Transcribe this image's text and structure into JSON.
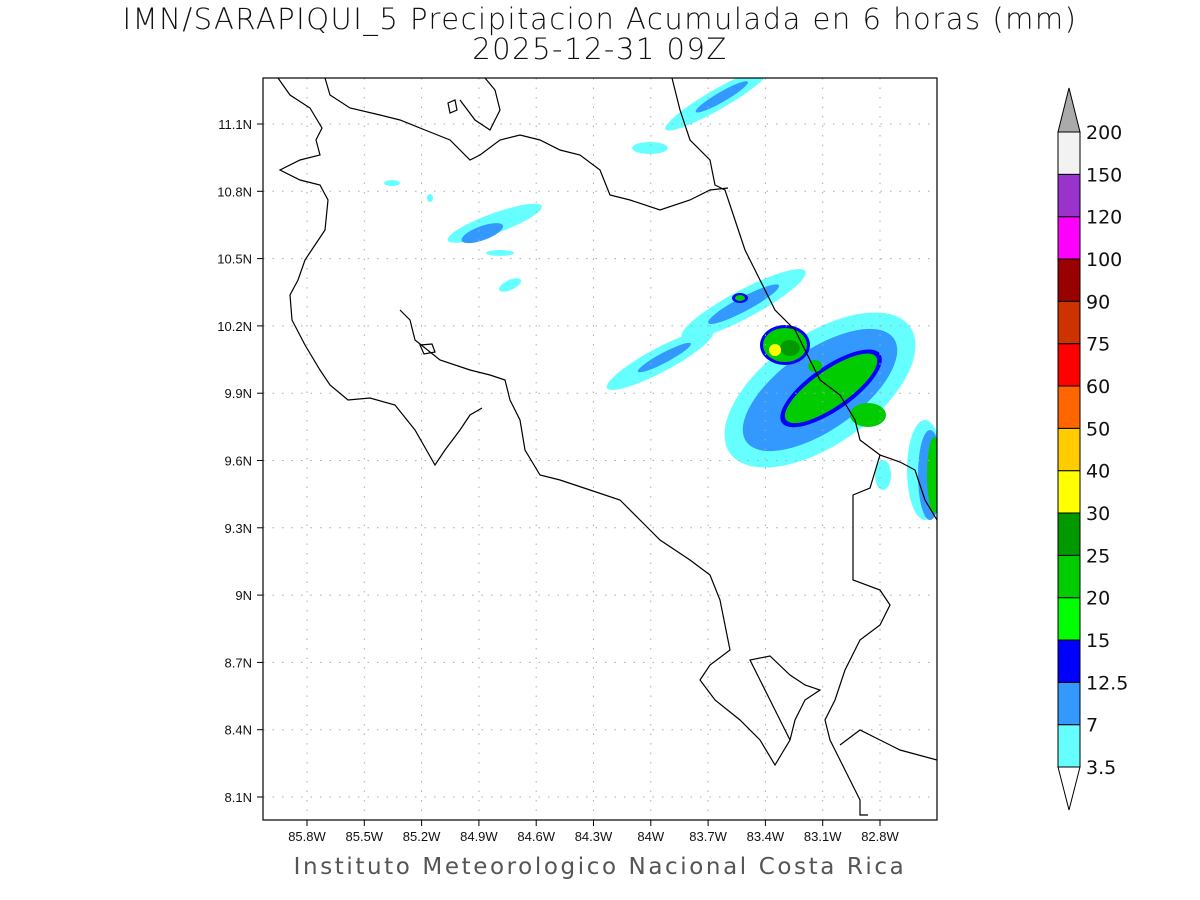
{
  "title": {
    "line1": "IMN/SARAPIQUI_5 Precipitacion Acumulada en 6 horas (mm)",
    "line2": "2025-12-31 09Z"
  },
  "credit": "Instituto Meteorologico Nacional Costa Rica",
  "map": {
    "lon_labels": [
      "85.8W",
      "85.5W",
      "85.2W",
      "84.9W",
      "84.6W",
      "84.3W",
      "84W",
      "83.7W",
      "83.4W",
      "83.1W",
      "82.8W"
    ],
    "lat_labels": [
      "11.1N",
      "10.8N",
      "10.5N",
      "10.2N",
      "9.9N",
      "9.6N",
      "9.3N",
      "9N",
      "8.7N",
      "8.4N",
      "8.1N"
    ]
  },
  "legend": {
    "levels": [
      "3.5",
      "7",
      "12.5",
      "15",
      "20",
      "25",
      "30",
      "40",
      "50",
      "60",
      "75",
      "90",
      "100",
      "120",
      "150",
      "200"
    ],
    "colors": [
      "#66ffff",
      "#3399ff",
      "#0000ff",
      "#00ff00",
      "#00cc00",
      "#009900",
      "#ffff00",
      "#ffcc00",
      "#ff6600",
      "#ff0000",
      "#cc3300",
      "#990000",
      "#ff00ff",
      "#9933cc",
      "#f2f2f2"
    ],
    "over_color": "#aaaaaa",
    "under_color": "#ffffff"
  }
}
